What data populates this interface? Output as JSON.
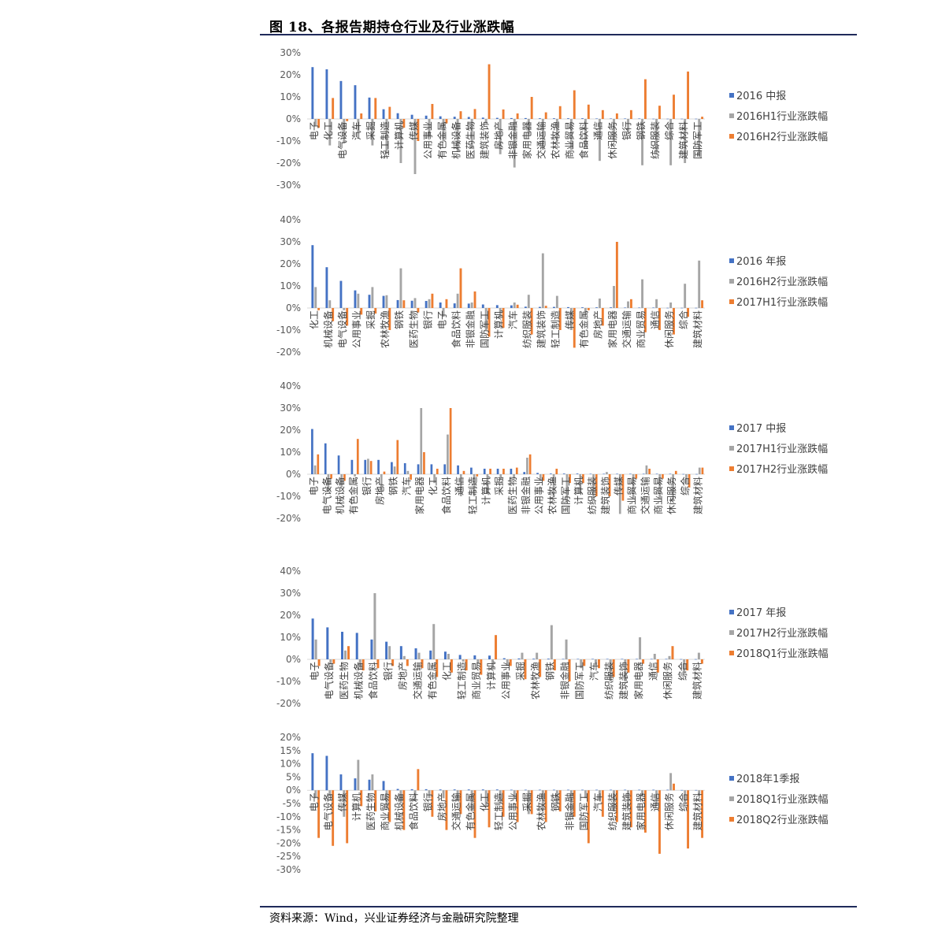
{
  "page_title": "图 18、各报告期持仓行业及行业涨跌幅",
  "source_note": "资料来源：Wind，兴业证券经济与金融研究院整理",
  "colors": {
    "blue": "#4472c4",
    "gray": "#a5a5a5",
    "orange": "#ed7d31",
    "axis": "#d9d9d9",
    "tick": "#595959",
    "rule": "#1f2a5a"
  },
  "chart_data": [
    {
      "type": "bar",
      "categories": [
        "电子",
        "化工",
        "电气设备",
        "汽车",
        "采掘",
        "轻工制造",
        "计算机",
        "传媒",
        "公用事业",
        "有色金属",
        "机械设备",
        "医药生物",
        "建筑装饰",
        "房地产",
        "非银金融",
        "家用电器",
        "交通运输",
        "农林牧渔",
        "商业贸易",
        "食品饮料",
        "通信",
        "休闲服务",
        "银行",
        "钢铁",
        "纺织服装",
        "综合",
        "建筑材料",
        "国防军工"
      ],
      "ylim": [
        -30,
        30
      ],
      "yticks": [
        -30,
        -20,
        -10,
        0,
        10,
        20,
        30
      ],
      "series": [
        {
          "name": "2016 中报",
          "values": [
            23.5,
            22.5,
            17.2,
            15.3,
            9.7,
            4.4,
            2.6,
            1.9,
            1.5,
            1.2,
            1.0,
            0.9,
            0.6,
            0.5,
            0.4,
            0.4,
            0.3,
            0.3,
            0.3,
            0.3,
            0.2,
            0.2,
            0.2,
            0.2,
            0.1,
            0.1,
            0.1,
            0.1
          ]
        },
        {
          "name": "2016H1行业涨跌幅",
          "values": [
            -3,
            -12,
            -11,
            -9,
            -12,
            -16,
            -20,
            -25,
            -8,
            -10,
            -15,
            -13,
            -2,
            -16,
            -22,
            -7,
            -14,
            -10,
            -14,
            -13,
            -19,
            -10,
            -6,
            -21,
            -16,
            -21,
            -20,
            -17
          ]
        },
        {
          "name": "2016H2行业涨跌幅",
          "values": [
            -4,
            9.5,
            -1,
            2.5,
            9.5,
            5.5,
            -4,
            -10,
            6.8,
            -2,
            3.5,
            4.5,
            24.8,
            4.3,
            2.5,
            10,
            3,
            5.8,
            13,
            6.5,
            4,
            2.5,
            4,
            18,
            6,
            11,
            21.5,
            1
          ]
        }
      ]
    },
    {
      "type": "bar",
      "categories": [
        "化工",
        "机械设备",
        "电气设备",
        "公用事业",
        "采掘",
        "农林牧渔",
        "钢铁",
        "医药生物",
        "银行",
        "电子",
        "食品饮料",
        "非银金融",
        "国防军工",
        "计算机",
        "汽车",
        "纺织服装",
        "建筑装饰",
        "轻工制造",
        "传媒",
        "有色金属",
        "房地产",
        "家用电器",
        "交通运输",
        "商业贸易",
        "通信",
        "休闲服务",
        "综合",
        "建筑材料"
      ],
      "ylim": [
        -20,
        40
      ],
      "yticks": [
        -20,
        -10,
        0,
        10,
        20,
        30,
        40
      ],
      "series": [
        {
          "name": "2016 年报",
          "values": [
            28.5,
            18.5,
            12.3,
            8,
            6,
            5.5,
            3.6,
            3.3,
            3.2,
            2.5,
            2.1,
            2,
            1.6,
            1.3,
            1.2,
            0.6,
            0.5,
            0.5,
            0.4,
            0.3,
            0.3,
            0.3,
            0.2,
            0.2,
            0.2,
            0.1,
            0.1,
            0.1
          ]
        },
        {
          "name": "2016H2行业涨跌幅",
          "values": [
            9.5,
            3.5,
            -1,
            6.5,
            9.5,
            5.8,
            18,
            4.5,
            4,
            -4,
            6.5,
            2.5,
            -10,
            -4,
            2.5,
            6,
            24.8,
            5.5,
            -10,
            -2,
            4.3,
            10,
            3,
            13,
            4,
            2.5,
            11,
            21.5
          ]
        },
        {
          "name": "2017H1行业涨跌幅",
          "values": [
            -1,
            -6,
            -8,
            -3,
            -2.5,
            -10,
            3.5,
            -2,
            6.5,
            4,
            18,
            7.5,
            -13,
            -9,
            1.5,
            -12,
            1,
            -10,
            -18,
            -1,
            -8,
            30,
            4,
            -11,
            -10,
            -12,
            -4,
            3.5
          ]
        }
      ]
    },
    {
      "type": "bar",
      "categories": [
        "电子",
        "电气设备",
        "机械设备",
        "有色金属",
        "银行",
        "房地产",
        "钢铁",
        "汽车",
        "家用电器",
        "化工",
        "食品饮料",
        "通信",
        "轻工制造",
        "计算机",
        "采掘",
        "医药生物",
        "非银金融",
        "公用事业",
        "农林牧渔",
        "国防军工",
        "计算机",
        "纺织服装",
        "建筑装饰",
        "传媒",
        "商业贸易",
        "交通运输",
        "商业贸易",
        "休闲服务",
        "综合",
        "建筑材料"
      ],
      "ylim": [
        -20,
        40
      ],
      "yticks": [
        -20,
        -10,
        0,
        10,
        20,
        30,
        40
      ],
      "series": [
        {
          "name": "2017 中报",
          "values": [
            20.5,
            14,
            8.5,
            6.5,
            6.5,
            6.5,
            5.5,
            5,
            4.5,
            4.5,
            4.5,
            4,
            3,
            2.5,
            2.5,
            2.5,
            1,
            0.6,
            0.3,
            0.3,
            0.3,
            0.2,
            0.2,
            0.2,
            0.2,
            0.2,
            0.2,
            0.2,
            0.1,
            0.1
          ]
        },
        {
          "name": "2017H1行业涨跌幅",
          "values": [
            4,
            -8,
            -6,
            -1,
            7,
            -8,
            3.5,
            1.5,
            30,
            -4,
            18,
            -10,
            -10,
            -9,
            -2.5,
            -2,
            7.5,
            -3,
            -10,
            -13,
            -9,
            -12,
            1,
            -18,
            -11,
            4,
            -11,
            -12,
            -4,
            3
          ]
        },
        {
          "name": "2017H2行业涨跌幅",
          "values": [
            9,
            -2,
            -3,
            16,
            6,
            1.2,
            15.5,
            -2.5,
            10,
            2.5,
            30,
            1.5,
            -1,
            2.5,
            2.5,
            3,
            9,
            -3,
            2.5,
            -4,
            -4,
            -10,
            -10,
            -12,
            -2,
            2.5,
            -2,
            1.5,
            -6,
            3
          ]
        }
      ]
    },
    {
      "type": "bar",
      "categories": [
        "电子",
        "电气设备",
        "医药生物",
        "机械设备",
        "食品饮料",
        "银行",
        "房地产",
        "交通运输",
        "有色金属",
        "化工",
        "轻工制造",
        "商业贸易",
        "计算机",
        "公用事业",
        "采掘",
        "农林牧渔",
        "钢铁",
        "非银金融",
        "国防军工",
        "汽车",
        "纺织服装",
        "建筑装饰",
        "家用电器",
        "通信",
        "休闲服务",
        "综合",
        "建筑材料"
      ],
      "ylim": [
        -20,
        40
      ],
      "yticks": [
        -20,
        -10,
        0,
        10,
        20,
        30,
        40
      ],
      "series": [
        {
          "name": "2017 年报",
          "values": [
            18.5,
            14.5,
            12.5,
            12,
            9,
            8,
            6,
            5,
            4,
            3.5,
            2,
            1.8,
            1.7,
            0.5,
            0.4,
            0.3,
            0.3,
            0.2,
            0.2,
            0.2,
            0.2,
            0.2,
            0.2,
            0.2,
            0.2,
            0.1,
            0.1
          ]
        },
        {
          "name": "2017H2行业涨跌幅",
          "values": [
            9,
            -2,
            4,
            -3,
            30,
            6,
            1.5,
            3,
            16,
            2.5,
            -1,
            -2,
            -4,
            -3,
            3,
            3,
            15.5,
            9,
            -4,
            -2.5,
            -10,
            -10,
            10,
            2.5,
            1.5,
            -6,
            3
          ]
        },
        {
          "name": "2018Q1行业涨跌幅",
          "values": [
            -3,
            -2,
            6,
            -5,
            -4,
            -3,
            -3,
            -4,
            -8,
            -6,
            -5,
            -7,
            11,
            -3,
            -9,
            -8,
            -5,
            -10,
            -3,
            -4,
            -8,
            -6,
            -2,
            -6,
            6,
            -5,
            -2
          ]
        }
      ]
    },
    {
      "type": "bar",
      "categories": [
        "电子",
        "电气设备",
        "传媒",
        "计算机",
        "医药生物",
        "商业贸易",
        "机械设备",
        "食品饮料",
        "银行",
        "房地产",
        "交通运输",
        "有色金属",
        "化工",
        "轻工制造",
        "公用事业",
        "采掘",
        "农林牧渔",
        "钢铁",
        "非银金融",
        "国防军工",
        "汽车",
        "纺织服装",
        "建筑装饰",
        "家用电器",
        "通信",
        "休闲服务",
        "综合",
        "建筑材料"
      ],
      "ylim": [
        -30,
        20
      ],
      "yticks": [
        -30,
        -25,
        -20,
        -15,
        -10,
        -5,
        0,
        5,
        10,
        15,
        20
      ],
      "series": [
        {
          "name": "2018年1季报",
          "values": [
            14,
            13,
            6,
            4.5,
            4,
            3.5,
            0.5,
            0.4,
            0.4,
            0.3,
            0.3,
            0.3,
            0.3,
            0.3,
            0.2,
            0.2,
            0.2,
            0.2,
            0.2,
            0.2,
            0.2,
            0.2,
            0.2,
            0.2,
            0.2,
            0.2,
            0.1,
            0.1
          ]
        },
        {
          "name": "2018Q1行业涨跌幅",
          "values": [
            -3,
            -2,
            -10,
            11.5,
            6,
            -7,
            -5,
            -4,
            -3,
            -3,
            -4,
            -8,
            -6,
            -5,
            -3,
            -9,
            -8,
            -5,
            -10,
            -3,
            -4,
            -8,
            -6,
            -2,
            -6,
            6.5,
            -5,
            -2
          ]
        },
        {
          "name": "2018Q2行业涨跌幅",
          "values": [
            -18,
            -21,
            -20,
            -6,
            -8,
            -12,
            -15,
            8,
            -10,
            -15,
            -9,
            -18,
            -14,
            -10,
            -12,
            -9,
            -12,
            -8,
            -10,
            -20,
            -10,
            -12,
            -14,
            -16,
            -24,
            2.5,
            -22,
            -18
          ]
        }
      ]
    }
  ]
}
